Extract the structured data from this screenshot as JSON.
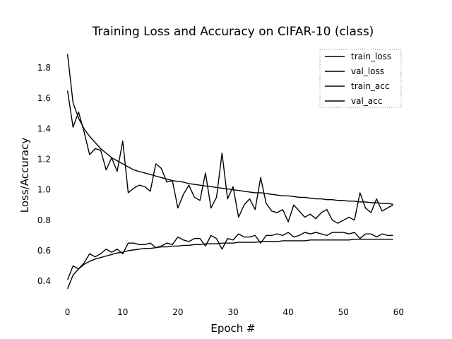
{
  "chart_data": {
    "type": "line",
    "title": "Training Loss and Accuracy on CIFAR-10 (class)",
    "xlabel": "Epoch #",
    "ylabel": "Loss/Accuracy",
    "xlim": [
      -2,
      62
    ],
    "ylim": [
      0.28,
      1.93
    ],
    "xticks": [
      0,
      10,
      20,
      30,
      40,
      50,
      60
    ],
    "yticks": [
      0.4,
      0.6,
      0.8,
      1.0,
      1.2,
      1.4,
      1.6,
      1.8
    ],
    "grid": false,
    "legend_position": "top-right",
    "x": [
      0,
      1,
      2,
      3,
      4,
      5,
      6,
      7,
      8,
      9,
      10,
      11,
      12,
      13,
      14,
      15,
      16,
      17,
      18,
      19,
      20,
      21,
      22,
      23,
      24,
      25,
      26,
      27,
      28,
      29,
      30,
      31,
      32,
      33,
      34,
      35,
      36,
      37,
      38,
      39,
      40,
      41,
      42,
      43,
      44,
      45,
      46,
      47,
      48,
      49,
      50,
      51,
      52,
      53,
      54,
      55,
      56,
      57,
      58,
      59
    ],
    "series": [
      {
        "name": "train_loss",
        "color": "#000000",
        "values": [
          1.89,
          1.57,
          1.47,
          1.4,
          1.35,
          1.31,
          1.27,
          1.24,
          1.21,
          1.19,
          1.17,
          1.15,
          1.13,
          1.12,
          1.11,
          1.1,
          1.09,
          1.08,
          1.07,
          1.06,
          1.055,
          1.05,
          1.04,
          1.035,
          1.03,
          1.025,
          1.02,
          1.015,
          1.01,
          1.005,
          1.0,
          0.995,
          0.99,
          0.985,
          0.98,
          0.98,
          0.975,
          0.97,
          0.965,
          0.96,
          0.96,
          0.955,
          0.95,
          0.95,
          0.945,
          0.94,
          0.94,
          0.935,
          0.935,
          0.93,
          0.93,
          0.925,
          0.925,
          0.92,
          0.92,
          0.915,
          0.915,
          0.91,
          0.91,
          0.905
        ]
      },
      {
        "name": "val_loss",
        "color": "#000000",
        "values": [
          1.65,
          1.41,
          1.51,
          1.38,
          1.23,
          1.27,
          1.26,
          1.13,
          1.21,
          1.12,
          1.32,
          0.98,
          1.01,
          1.03,
          1.02,
          0.99,
          1.17,
          1.14,
          1.05,
          1.06,
          0.88,
          0.97,
          1.03,
          0.95,
          0.93,
          1.11,
          0.88,
          0.95,
          1.24,
          0.94,
          1.02,
          0.82,
          0.9,
          0.94,
          0.87,
          1.08,
          0.91,
          0.86,
          0.85,
          0.87,
          0.79,
          0.9,
          0.86,
          0.82,
          0.84,
          0.81,
          0.85,
          0.87,
          0.8,
          0.78,
          0.8,
          0.82,
          0.8,
          0.98,
          0.88,
          0.85,
          0.94,
          0.86,
          0.88,
          0.9
        ]
      },
      {
        "name": "train_acc",
        "color": "#000000",
        "values": [
          0.35,
          0.44,
          0.48,
          0.51,
          0.53,
          0.545,
          0.555,
          0.565,
          0.575,
          0.585,
          0.59,
          0.6,
          0.605,
          0.61,
          0.615,
          0.615,
          0.62,
          0.625,
          0.625,
          0.63,
          0.63,
          0.635,
          0.635,
          0.64,
          0.64,
          0.645,
          0.645,
          0.645,
          0.65,
          0.65,
          0.65,
          0.655,
          0.655,
          0.655,
          0.655,
          0.66,
          0.66,
          0.66,
          0.66,
          0.665,
          0.665,
          0.665,
          0.665,
          0.665,
          0.67,
          0.67,
          0.67,
          0.67,
          0.67,
          0.67,
          0.67,
          0.67,
          0.675,
          0.675,
          0.675,
          0.675,
          0.675,
          0.675,
          0.675,
          0.675
        ]
      },
      {
        "name": "val_acc",
        "color": "#000000",
        "values": [
          0.41,
          0.5,
          0.48,
          0.52,
          0.58,
          0.56,
          0.58,
          0.61,
          0.59,
          0.61,
          0.58,
          0.65,
          0.65,
          0.64,
          0.64,
          0.65,
          0.62,
          0.63,
          0.65,
          0.64,
          0.69,
          0.67,
          0.66,
          0.68,
          0.68,
          0.63,
          0.7,
          0.68,
          0.61,
          0.68,
          0.67,
          0.71,
          0.69,
          0.69,
          0.7,
          0.65,
          0.7,
          0.7,
          0.71,
          0.7,
          0.72,
          0.69,
          0.7,
          0.72,
          0.71,
          0.72,
          0.71,
          0.7,
          0.72,
          0.72,
          0.72,
          0.71,
          0.72,
          0.68,
          0.71,
          0.71,
          0.69,
          0.71,
          0.7,
          0.7
        ]
      }
    ]
  }
}
